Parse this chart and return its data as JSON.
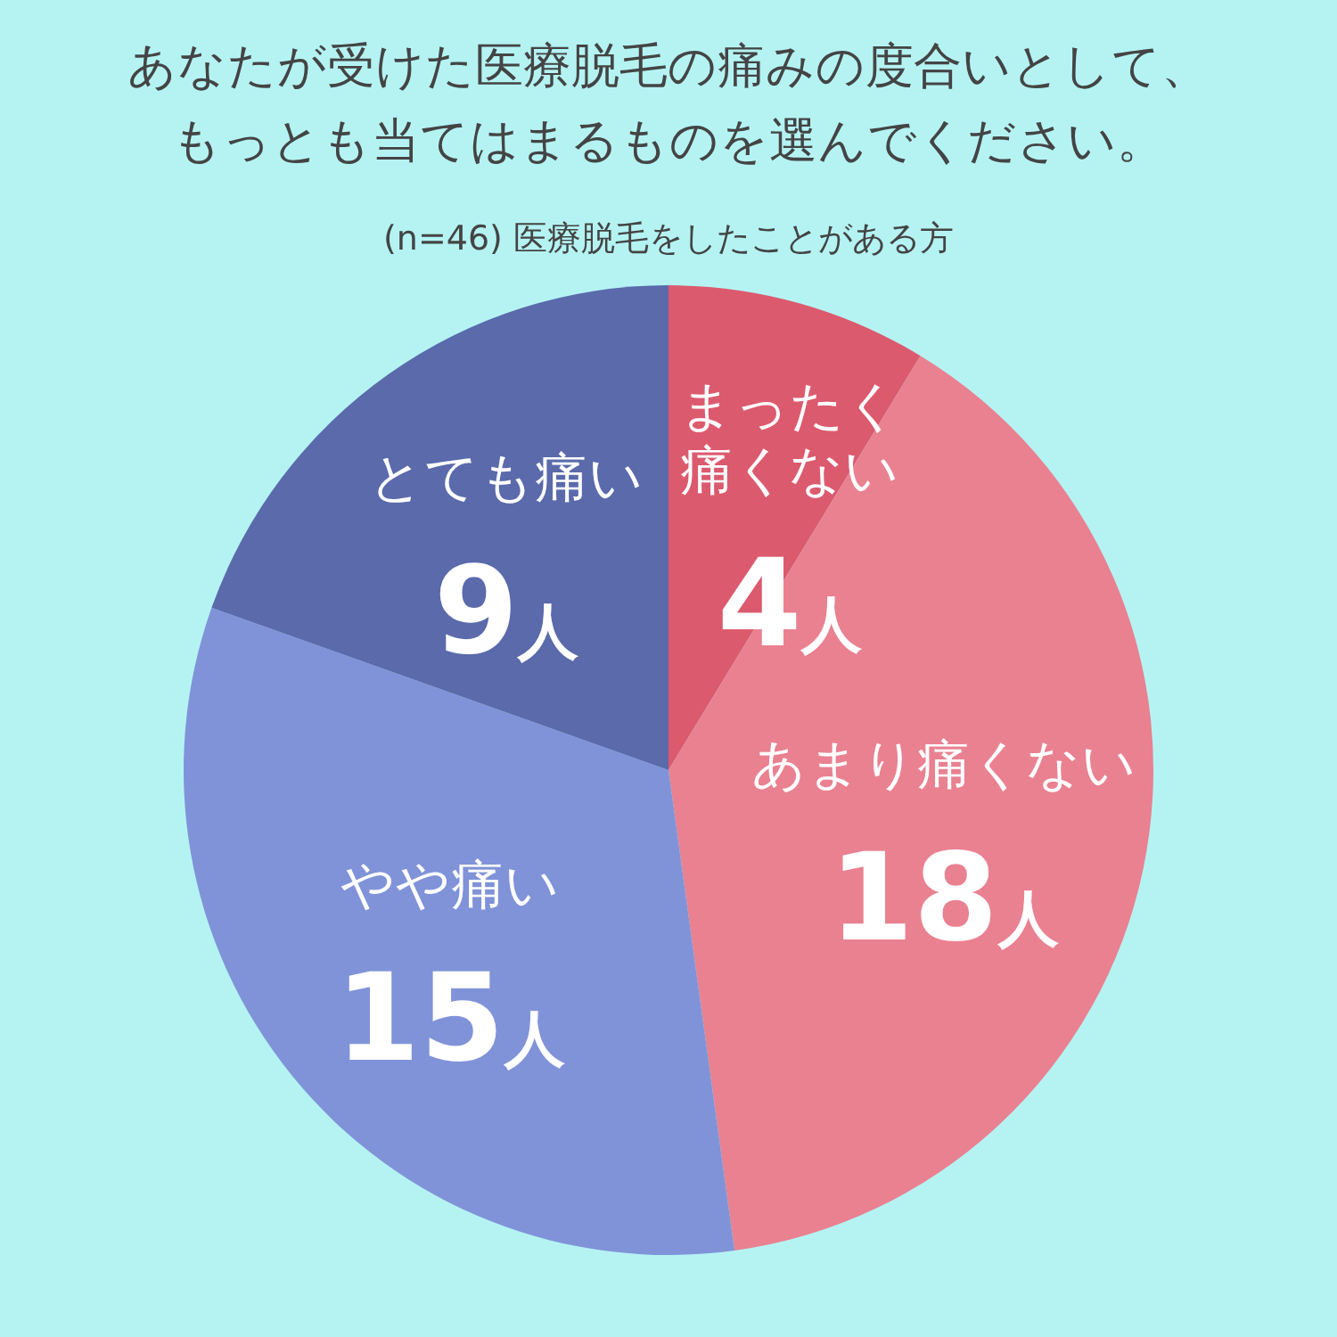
{
  "chart_data": {
    "type": "pie",
    "title": "あなたが受けた医療脱毛の痛みの度合いとして、もっとも当てはまるものを選んでください。",
    "subtitle": "(n=46) 医療脱毛をしたことがある方",
    "categories": [
      "まったく痛くない",
      "あまり痛くない",
      "やや痛い",
      "とても痛い"
    ],
    "values": [
      4,
      18,
      15,
      9
    ],
    "value_labels": [
      "4人",
      "18人",
      "15人",
      "9人"
    ],
    "colors": [
      "#dc5a6e",
      "#e98191",
      "#8093d8",
      "#5a6aab"
    ],
    "legend": false
  }
}
